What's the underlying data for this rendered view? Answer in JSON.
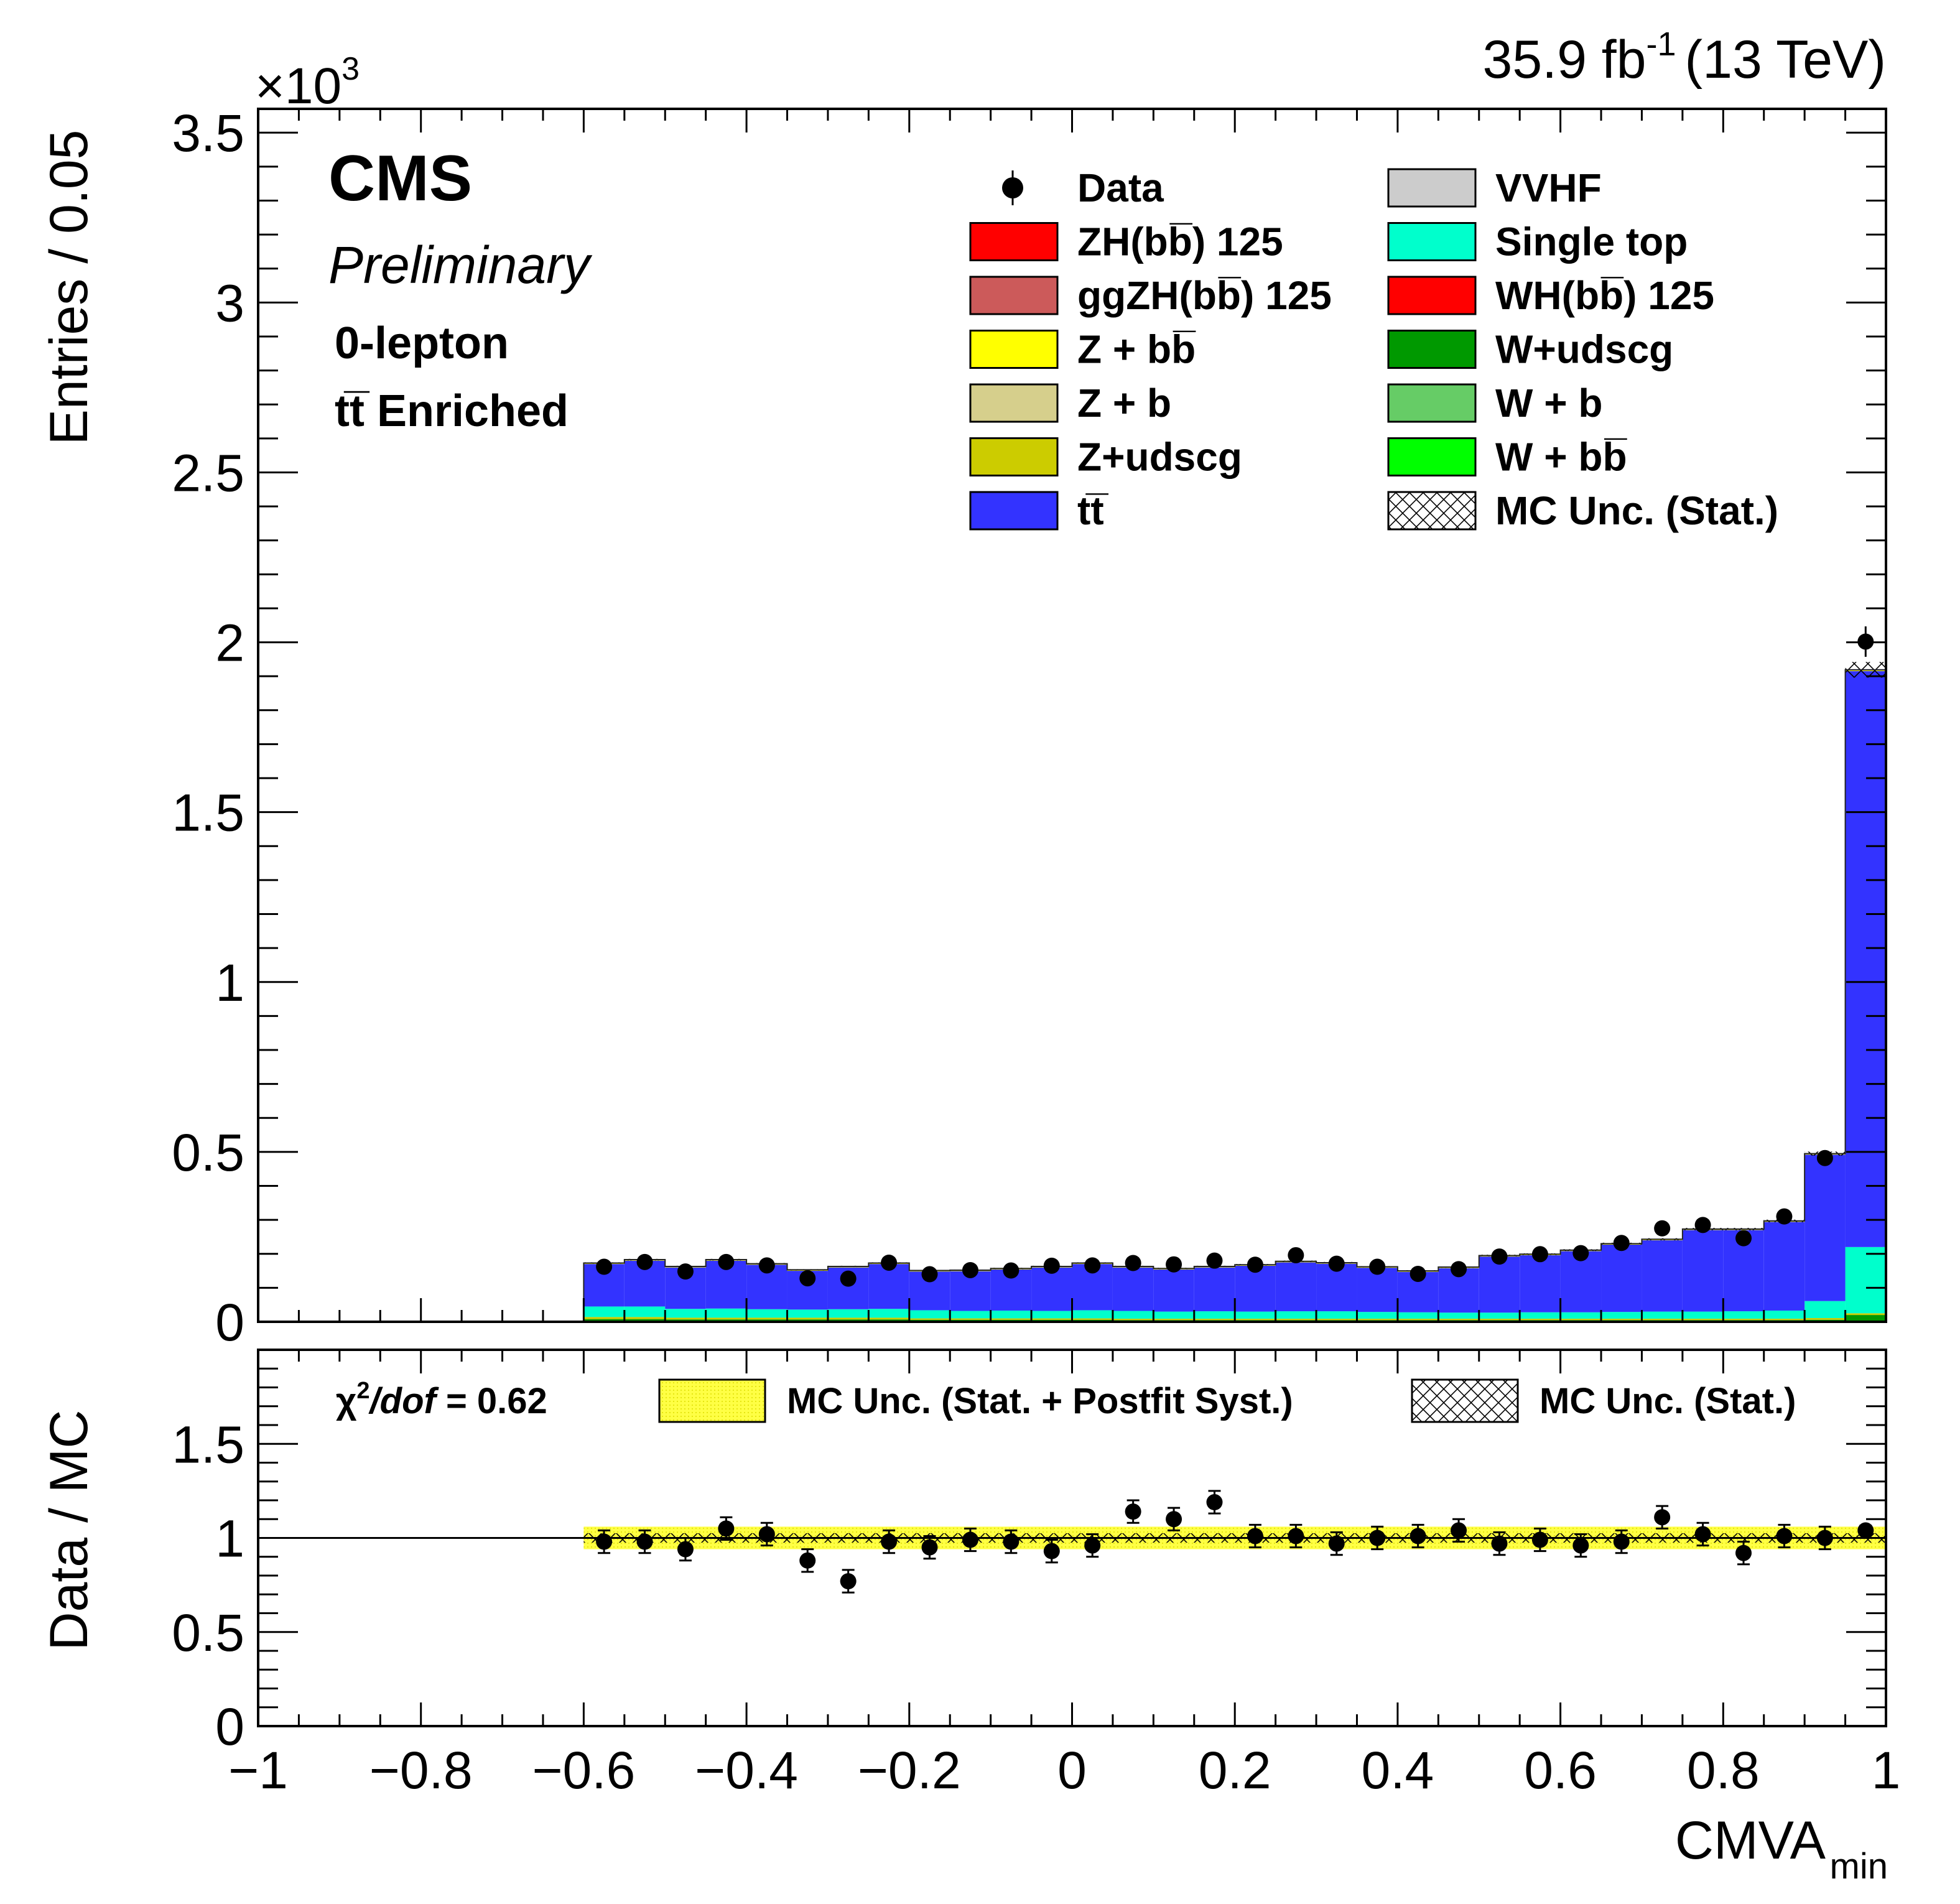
{
  "header": {
    "exp_label": "CMS",
    "status_label": "Preliminary",
    "channel_label": "0-lepton",
    "region_label": "tt̅ Enriched",
    "lumi_value": "35.9 fb",
    "lumi_exp": "-1",
    "lumi_energy": "(13 TeV)"
  },
  "colors": {
    "ttbar": "#3333ff",
    "single_top": "#00ffcc",
    "w_udscg": "#009900",
    "w_b": "#66cc66",
    "w_bb": "#00ff00",
    "z_udscg": "#cccc00",
    "z_b": "#d6cf8c",
    "z_bb": "#ffff00",
    "zh": "#ff0000",
    "ggzh": "#cc5a5a",
    "wh": "#ff0000",
    "vvhf": "#cccccc",
    "syst_band": "#ffff33"
  },
  "legend": {
    "items": [
      {
        "key": "data",
        "label": "Data",
        "kind": "marker"
      },
      {
        "key": "vvhf",
        "label": "VVHF",
        "kind": "box"
      },
      {
        "key": "zh",
        "label": "ZH(bb̅) 125",
        "kind": "box"
      },
      {
        "key": "single_top",
        "label": "Single top",
        "kind": "box"
      },
      {
        "key": "ggzh",
        "label": "ggZH(bb̅) 125",
        "kind": "box"
      },
      {
        "key": "wh",
        "label": "WH(bb̅) 125",
        "kind": "box"
      },
      {
        "key": "z_bb",
        "label": "Z + bb̅",
        "kind": "box"
      },
      {
        "key": "w_udscg",
        "label": "W+udscg",
        "kind": "box"
      },
      {
        "key": "z_b",
        "label": "Z + b",
        "kind": "box"
      },
      {
        "key": "w_b",
        "label": "W + b",
        "kind": "box"
      },
      {
        "key": "z_udscg",
        "label": "Z+udscg",
        "kind": "box"
      },
      {
        "key": "w_bb",
        "label": "W + bb̅",
        "kind": "box"
      },
      {
        "key": "ttbar",
        "label": "tt̅",
        "kind": "box"
      },
      {
        "key": "mc_stat",
        "label": "MC Unc. (Stat.)",
        "kind": "hatch"
      }
    ]
  },
  "ratio_panel": {
    "chi2_prefix": "χ",
    "chi2_sup": "2",
    "chi2_dof": "/dof",
    "chi2_value": " = 0.62",
    "legend_syst": "MC Unc. (Stat. + Postfit Syst.)",
    "legend_stat": "MC Unc. (Stat.)"
  },
  "chart_data": [
    {
      "type": "bar",
      "stacked": true,
      "ylabel": "Entries / 0.05",
      "y_multiplier_label": "×10",
      "y_multiplier_exp": "3",
      "xlim": [
        -1,
        1
      ],
      "ylim": [
        0,
        3.57
      ],
      "y_ticks": [
        "0",
        "0.5",
        "1",
        "1.5",
        "2",
        "2.5",
        "3",
        "3.5"
      ],
      "bin_width": 0.05,
      "bin_low_edges": [
        -0.6,
        -0.55,
        -0.5,
        -0.45,
        -0.4,
        -0.35,
        -0.3,
        -0.25,
        -0.2,
        -0.15,
        -0.1,
        -0.05,
        0.0,
        0.05,
        0.1,
        0.15,
        0.2,
        0.25,
        0.3,
        0.35,
        0.4,
        0.45,
        0.5,
        0.55,
        0.6,
        0.65,
        0.7,
        0.75,
        0.8,
        0.85,
        0.9,
        0.95
      ],
      "series": [
        {
          "key": "w_udscg",
          "name": "W+udscg",
          "values": [
            0.008,
            0.008,
            0.007,
            0.007,
            0.007,
            0.007,
            0.007,
            0.007,
            0.006,
            0.006,
            0.006,
            0.006,
            0.006,
            0.005,
            0.005,
            0.005,
            0.005,
            0.005,
            0.005,
            0.005,
            0.005,
            0.005,
            0.005,
            0.005,
            0.005,
            0.005,
            0.005,
            0.005,
            0.005,
            0.005,
            0.006,
            0.02
          ]
        },
        {
          "key": "z_udscg",
          "name": "Z+udscg",
          "values": [
            0.006,
            0.006,
            0.005,
            0.005,
            0.005,
            0.005,
            0.005,
            0.005,
            0.004,
            0.004,
            0.004,
            0.004,
            0.004,
            0.004,
            0.004,
            0.004,
            0.004,
            0.004,
            0.004,
            0.004,
            0.004,
            0.004,
            0.004,
            0.004,
            0.004,
            0.004,
            0.004,
            0.004,
            0.004,
            0.004,
            0.005,
            0.005
          ]
        },
        {
          "key": "single_top",
          "name": "Single top",
          "values": [
            0.031,
            0.031,
            0.026,
            0.027,
            0.025,
            0.024,
            0.025,
            0.026,
            0.024,
            0.022,
            0.023,
            0.022,
            0.024,
            0.023,
            0.021,
            0.022,
            0.021,
            0.022,
            0.022,
            0.02,
            0.019,
            0.018,
            0.018,
            0.019,
            0.019,
            0.02,
            0.021,
            0.021,
            0.022,
            0.024,
            0.05,
            0.195
          ]
        },
        {
          "key": "ttbar",
          "name": "tt̅",
          "values": [
            0.125,
            0.135,
            0.122,
            0.141,
            0.131,
            0.114,
            0.123,
            0.132,
            0.114,
            0.117,
            0.121,
            0.128,
            0.136,
            0.128,
            0.124,
            0.129,
            0.135,
            0.144,
            0.14,
            0.13,
            0.119,
            0.131,
            0.165,
            0.168,
            0.18,
            0.198,
            0.21,
            0.24,
            0.239,
            0.261,
            0.431,
            1.695
          ]
        },
        {
          "key": "z_bb",
          "name": "Z + bb̅",
          "values": [
            0.002,
            0.002,
            0.002,
            0.002,
            0.002,
            0.002,
            0.002,
            0.002,
            0.002,
            0.002,
            0.002,
            0.002,
            0.002,
            0.002,
            0.002,
            0.002,
            0.002,
            0.002,
            0.002,
            0.002,
            0.002,
            0.002,
            0.002,
            0.002,
            0.002,
            0.002,
            0.002,
            0.002,
            0.002,
            0.002,
            0.002,
            0.002
          ]
        },
        {
          "key": "vvhf",
          "name": "VVHF",
          "values": [
            0.001,
            0.001,
            0.001,
            0.001,
            0.001,
            0.001,
            0.001,
            0.001,
            0.001,
            0.001,
            0.001,
            0.001,
            0.001,
            0.001,
            0.001,
            0.001,
            0.001,
            0.001,
            0.001,
            0.001,
            0.001,
            0.001,
            0.001,
            0.001,
            0.001,
            0.001,
            0.001,
            0.001,
            0.001,
            0.001,
            0.001,
            0.002
          ]
        }
      ],
      "data": {
        "name": "Data",
        "x": [
          -0.575,
          -0.525,
          -0.475,
          -0.425,
          -0.375,
          -0.325,
          -0.275,
          -0.225,
          -0.175,
          -0.125,
          -0.075,
          -0.025,
          0.025,
          0.075,
          0.125,
          0.175,
          0.225,
          0.275,
          0.325,
          0.375,
          0.425,
          0.475,
          0.525,
          0.575,
          0.625,
          0.675,
          0.725,
          0.775,
          0.825,
          0.875,
          0.925,
          0.975
        ],
        "y": [
          0.162,
          0.176,
          0.148,
          0.176,
          0.166,
          0.128,
          0.127,
          0.174,
          0.14,
          0.152,
          0.151,
          0.165,
          0.166,
          0.173,
          0.169,
          0.18,
          0.168,
          0.196,
          0.171,
          0.162,
          0.141,
          0.155,
          0.192,
          0.199,
          0.202,
          0.232,
          0.275,
          0.285,
          0.246,
          0.31,
          0.482,
          2.002
        ]
      }
    },
    {
      "type": "scatter",
      "xlabel": "CMVA",
      "xlabel_sub": "min",
      "ylabel": "Data / MC",
      "xlim": [
        -1,
        1
      ],
      "ylim": [
        0,
        2
      ],
      "x_ticks": [
        "−1",
        "−0.8",
        "−0.6",
        "−0.4",
        "−0.2",
        "0",
        "0.2",
        "0.4",
        "0.6",
        "0.8",
        "1"
      ],
      "y_ticks": [
        "0",
        "0.5",
        "1",
        "1.5"
      ],
      "reference_line": 1,
      "syst_band_halfwidth": 0.06,
      "stat_band_halfwidth": 0.025,
      "ratio": {
        "x": [
          -0.575,
          -0.525,
          -0.475,
          -0.425,
          -0.375,
          -0.325,
          -0.275,
          -0.225,
          -0.175,
          -0.125,
          -0.075,
          -0.025,
          0.025,
          0.075,
          0.125,
          0.175,
          0.225,
          0.275,
          0.325,
          0.375,
          0.425,
          0.475,
          0.525,
          0.575,
          0.625,
          0.675,
          0.725,
          0.775,
          0.825,
          0.875,
          0.925,
          0.975
        ],
        "y": [
          0.98,
          0.98,
          0.94,
          1.05,
          1.02,
          0.88,
          0.77,
          0.98,
          0.95,
          0.99,
          0.98,
          0.93,
          0.96,
          1.14,
          1.1,
          1.19,
          1.01,
          1.01,
          0.97,
          1.0,
          1.01,
          1.04,
          0.97,
          0.99,
          0.96,
          0.98,
          1.11,
          1.02,
          0.92,
          1.01,
          1.0,
          1.04
        ]
      }
    }
  ]
}
